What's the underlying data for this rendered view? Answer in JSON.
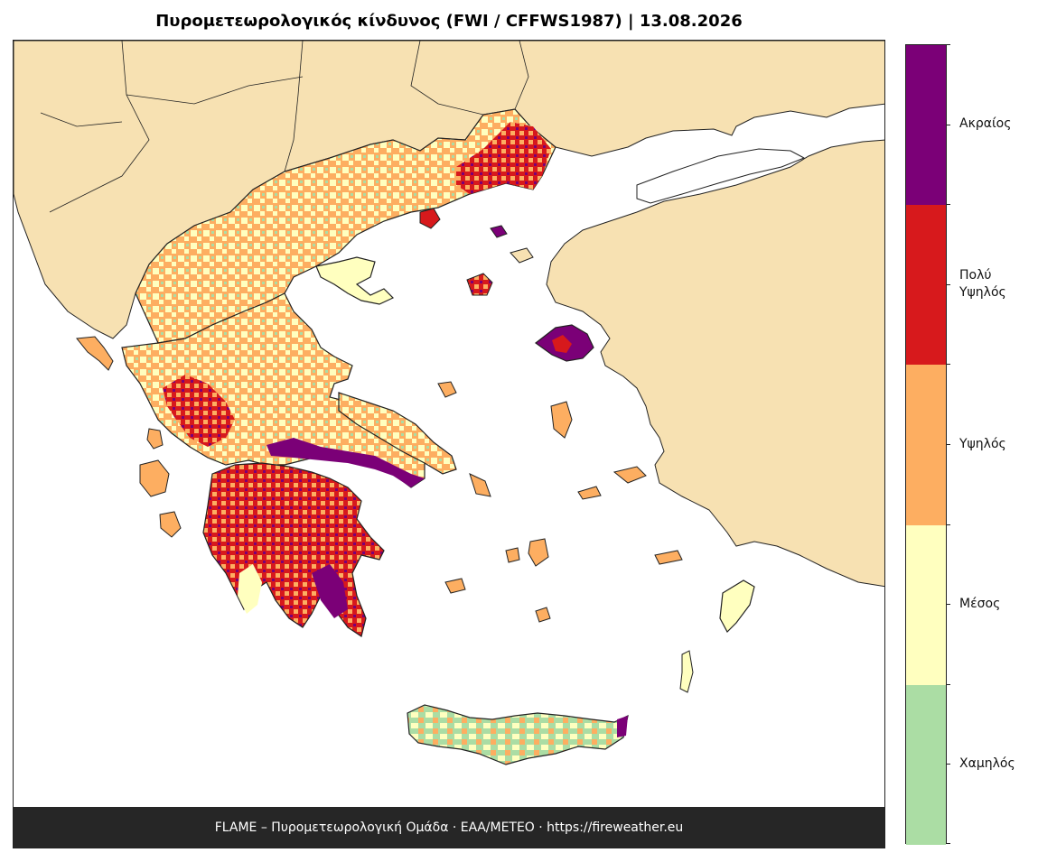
{
  "title": "Πυρομετεωρολογικός κίνδυνος (FWI / CFFWS1987)  |  13.08.2026",
  "footer": "FLAME – Πυρομετεωρολογική Ομάδα · ΕΑΑ/METEO · https://fireweather.eu",
  "colors": {
    "land_outside": "#f7e1b2",
    "sea": "#ffffff",
    "border": "#222222",
    "footer_bg": "#262626"
  },
  "legend": {
    "classes": [
      {
        "label": "Ακραίος",
        "color": "#7b0077"
      },
      {
        "label": "Πολύ\nΥψηλός",
        "color": "#d7191c"
      },
      {
        "label": "Υψηλός",
        "color": "#fdae61"
      },
      {
        "label": "Μέσος",
        "color": "#ffffbf"
      },
      {
        "label": "Χαμηλός",
        "color": "#abdda4"
      }
    ]
  },
  "regions_shown": {
    "mainland_greece": "mixed: Μέσος, Υψηλός, Πολύ Υψηλός, Ακραίος",
    "peloponnese": "mixed: Υψηλός, Πολύ Υψηλός, Ακραίος",
    "thrace_evros": "Υψηλός, Πολύ Υψηλός",
    "lesvos": "Ακραίος, Πολύ Υψηλός",
    "crete": "Χαμηλός, Μέσος, Υψηλός, Ακραίος (east tip)",
    "dodecanese": "Μέσος, Υψηλός"
  }
}
